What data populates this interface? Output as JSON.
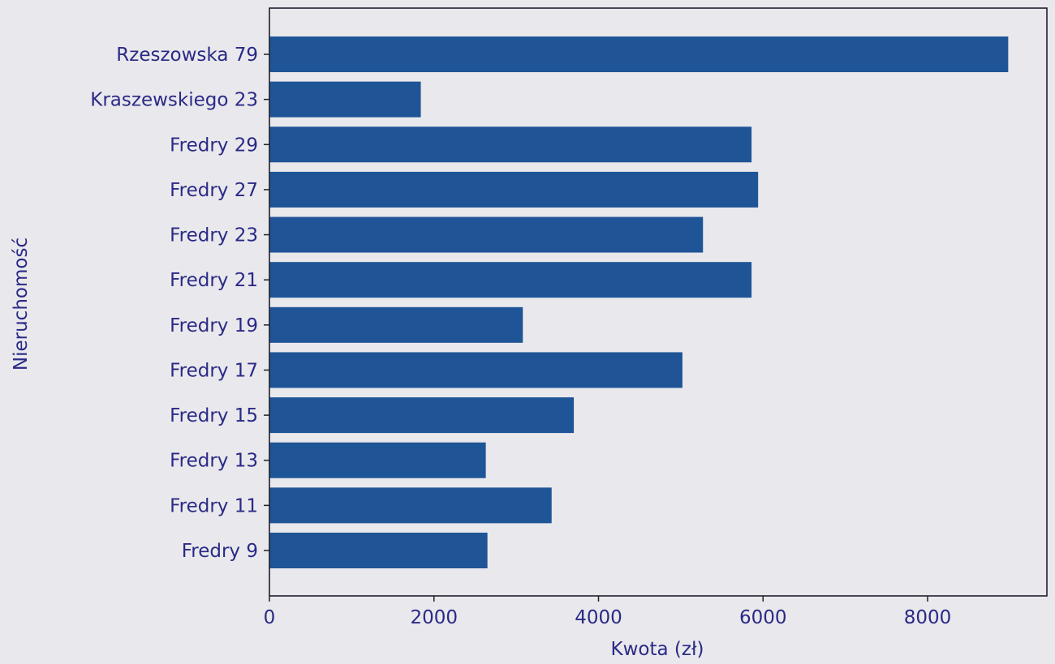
{
  "chart_data": {
    "type": "bar",
    "orientation": "horizontal",
    "title": "",
    "xlabel": "Kwota (zł)",
    "ylabel": "Nieruchomość",
    "categories": [
      "Rzeszowska 79",
      "Kraszewskiego 23",
      "Fredry 29",
      "Fredry 27",
      "Fredry 23",
      "Fredry 21",
      "Fredry 19",
      "Fredry 17",
      "Fredry 15",
      "Fredry 13",
      "Fredry 11",
      "Fredry 9"
    ],
    "values": [
      8980,
      1840,
      5860,
      5940,
      5270,
      5860,
      3080,
      5020,
      3700,
      2630,
      3430,
      2650
    ],
    "xlim": [
      0,
      9450
    ],
    "xticks": [
      0,
      2000,
      4000,
      6000,
      8000
    ],
    "grid": false,
    "bar_color": "#1f5597",
    "text_color": "#2a2a86",
    "background_color": "#e9e8ec"
  }
}
